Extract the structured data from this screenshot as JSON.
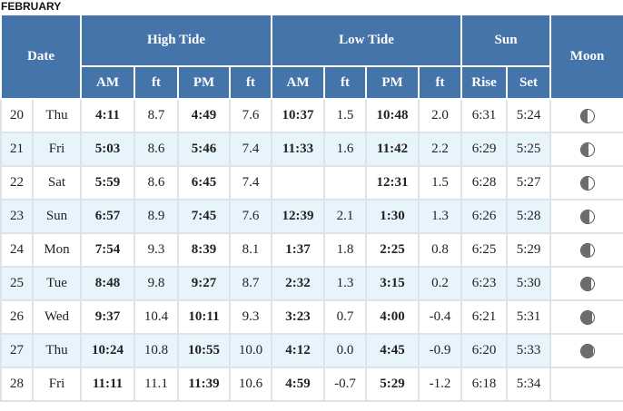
{
  "month": "FEBRUARY",
  "headers": {
    "date": "Date",
    "high_tide": "High Tide",
    "low_tide": "Low Tide",
    "sun": "Sun",
    "moon": "Moon",
    "am": "AM",
    "pm": "PM",
    "ft": "ft",
    "rise": "Rise",
    "set": "Set"
  },
  "rows": [
    {
      "day": "20",
      "dow": "Thu",
      "hi_am": "4:11",
      "hi_am_ft": "8.7",
      "hi_pm": "4:49",
      "hi_pm_ft": "7.6",
      "lo_am": "10:37",
      "lo_am_ft": "1.5",
      "lo_pm": "10:48",
      "lo_pm_ft": "2.0",
      "rise": "6:31",
      "set": "5:24",
      "moon_dark_fraction": 0.5
    },
    {
      "day": "21",
      "dow": "Fri",
      "hi_am": "5:03",
      "hi_am_ft": "8.6",
      "hi_pm": "5:46",
      "hi_pm_ft": "7.4",
      "lo_am": "11:33",
      "lo_am_ft": "1.6",
      "lo_pm": "11:42",
      "lo_pm_ft": "2.2",
      "rise": "6:29",
      "set": "5:25",
      "moon_dark_fraction": 0.55
    },
    {
      "day": "22",
      "dow": "Sat",
      "hi_am": "5:59",
      "hi_am_ft": "8.6",
      "hi_pm": "6:45",
      "hi_pm_ft": "7.4",
      "lo_am": "",
      "lo_am_ft": "",
      "lo_pm": "12:31",
      "lo_pm_ft": "1.5",
      "rise": "6:28",
      "set": "5:27",
      "moon_dark_fraction": 0.6
    },
    {
      "day": "23",
      "dow": "Sun",
      "hi_am": "6:57",
      "hi_am_ft": "8.9",
      "hi_pm": "7:45",
      "hi_pm_ft": "7.6",
      "lo_am": "12:39",
      "lo_am_ft": "2.1",
      "lo_pm": "1:30",
      "lo_pm_ft": "1.3",
      "rise": "6:26",
      "set": "5:28",
      "moon_dark_fraction": 0.65
    },
    {
      "day": "24",
      "dow": "Mon",
      "hi_am": "7:54",
      "hi_am_ft": "9.3",
      "hi_pm": "8:39",
      "hi_pm_ft": "8.1",
      "lo_am": "1:37",
      "lo_am_ft": "1.8",
      "lo_pm": "2:25",
      "lo_pm_ft": "0.8",
      "rise": "6:25",
      "set": "5:29",
      "moon_dark_fraction": 0.72
    },
    {
      "day": "25",
      "dow": "Tue",
      "hi_am": "8:48",
      "hi_am_ft": "9.8",
      "hi_pm": "9:27",
      "hi_pm_ft": "8.7",
      "lo_am": "2:32",
      "lo_am_ft": "1.3",
      "lo_pm": "3:15",
      "lo_pm_ft": "0.2",
      "rise": "6:23",
      "set": "5:30",
      "moon_dark_fraction": 0.8
    },
    {
      "day": "26",
      "dow": "Wed",
      "hi_am": "9:37",
      "hi_am_ft": "10.4",
      "hi_pm": "10:11",
      "hi_pm_ft": "9.3",
      "lo_am": "3:23",
      "lo_am_ft": "0.7",
      "lo_pm": "4:00",
      "lo_pm_ft": "-0.4",
      "rise": "6:21",
      "set": "5:31",
      "moon_dark_fraction": 0.88
    },
    {
      "day": "27",
      "dow": "Thu",
      "hi_am": "10:24",
      "hi_am_ft": "10.8",
      "hi_pm": "10:55",
      "hi_pm_ft": "10.0",
      "lo_am": "4:12",
      "lo_am_ft": "0.0",
      "lo_pm": "4:45",
      "lo_pm_ft": "-0.9",
      "rise": "6:20",
      "set": "5:33",
      "moon_dark_fraction": 0.96
    },
    {
      "day": "28",
      "dow": "Fri",
      "hi_am": "11:11",
      "hi_am_ft": "11.1",
      "hi_pm": "11:39",
      "hi_pm_ft": "10.6",
      "lo_am": "4:59",
      "lo_am_ft": "-0.7",
      "lo_pm": "5:29",
      "lo_pm_ft": "-1.2",
      "rise": "6:18",
      "set": "5:34",
      "moon_dark_fraction": null
    }
  ]
}
